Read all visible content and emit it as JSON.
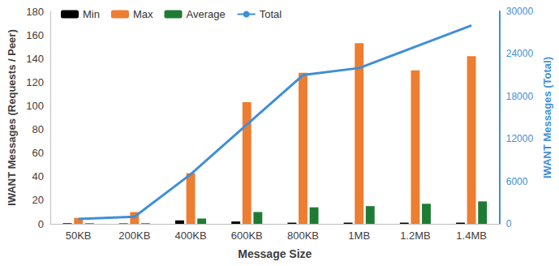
{
  "chart_data": {
    "type": "bar",
    "x_label": "Message Size",
    "y_label": "IWANT Messages (Requests / Peer)",
    "y2_label": "IWANT Messages (Total)",
    "categories": [
      "50KB",
      "200KB",
      "400KB",
      "600KB",
      "800KB",
      "1MB",
      "1.2MB",
      "1.4MB"
    ],
    "series": [
      {
        "name": "Min",
        "type": "bar",
        "color": "#000000",
        "values": [
          0.5,
          0.3,
          3,
          2,
          1,
          1,
          1,
          1
        ]
      },
      {
        "name": "Max",
        "type": "bar",
        "color": "#ed7d31",
        "values": [
          5,
          10,
          43,
          103,
          128,
          153,
          130,
          142
        ]
      },
      {
        "name": "Average",
        "type": "bar",
        "color": "#1e7b34",
        "values": [
          0.5,
          0.5,
          4.5,
          10,
          14,
          15,
          17,
          19
        ]
      },
      {
        "name": "Total",
        "type": "line",
        "axis": "y2",
        "color": "#3f8fd8",
        "values": [
          700,
          1000,
          7000,
          14000,
          21000,
          22000,
          25000,
          28000
        ]
      }
    ],
    "ylim": [
      0,
      180
    ],
    "yticks": [
      0,
      20,
      40,
      60,
      80,
      100,
      120,
      140,
      160,
      180
    ],
    "y2lim": [
      0,
      30000
    ],
    "y2ticks": [
      0,
      6000,
      12000,
      18000,
      24000,
      30000
    ],
    "grid": false,
    "legend": "upper left"
  }
}
